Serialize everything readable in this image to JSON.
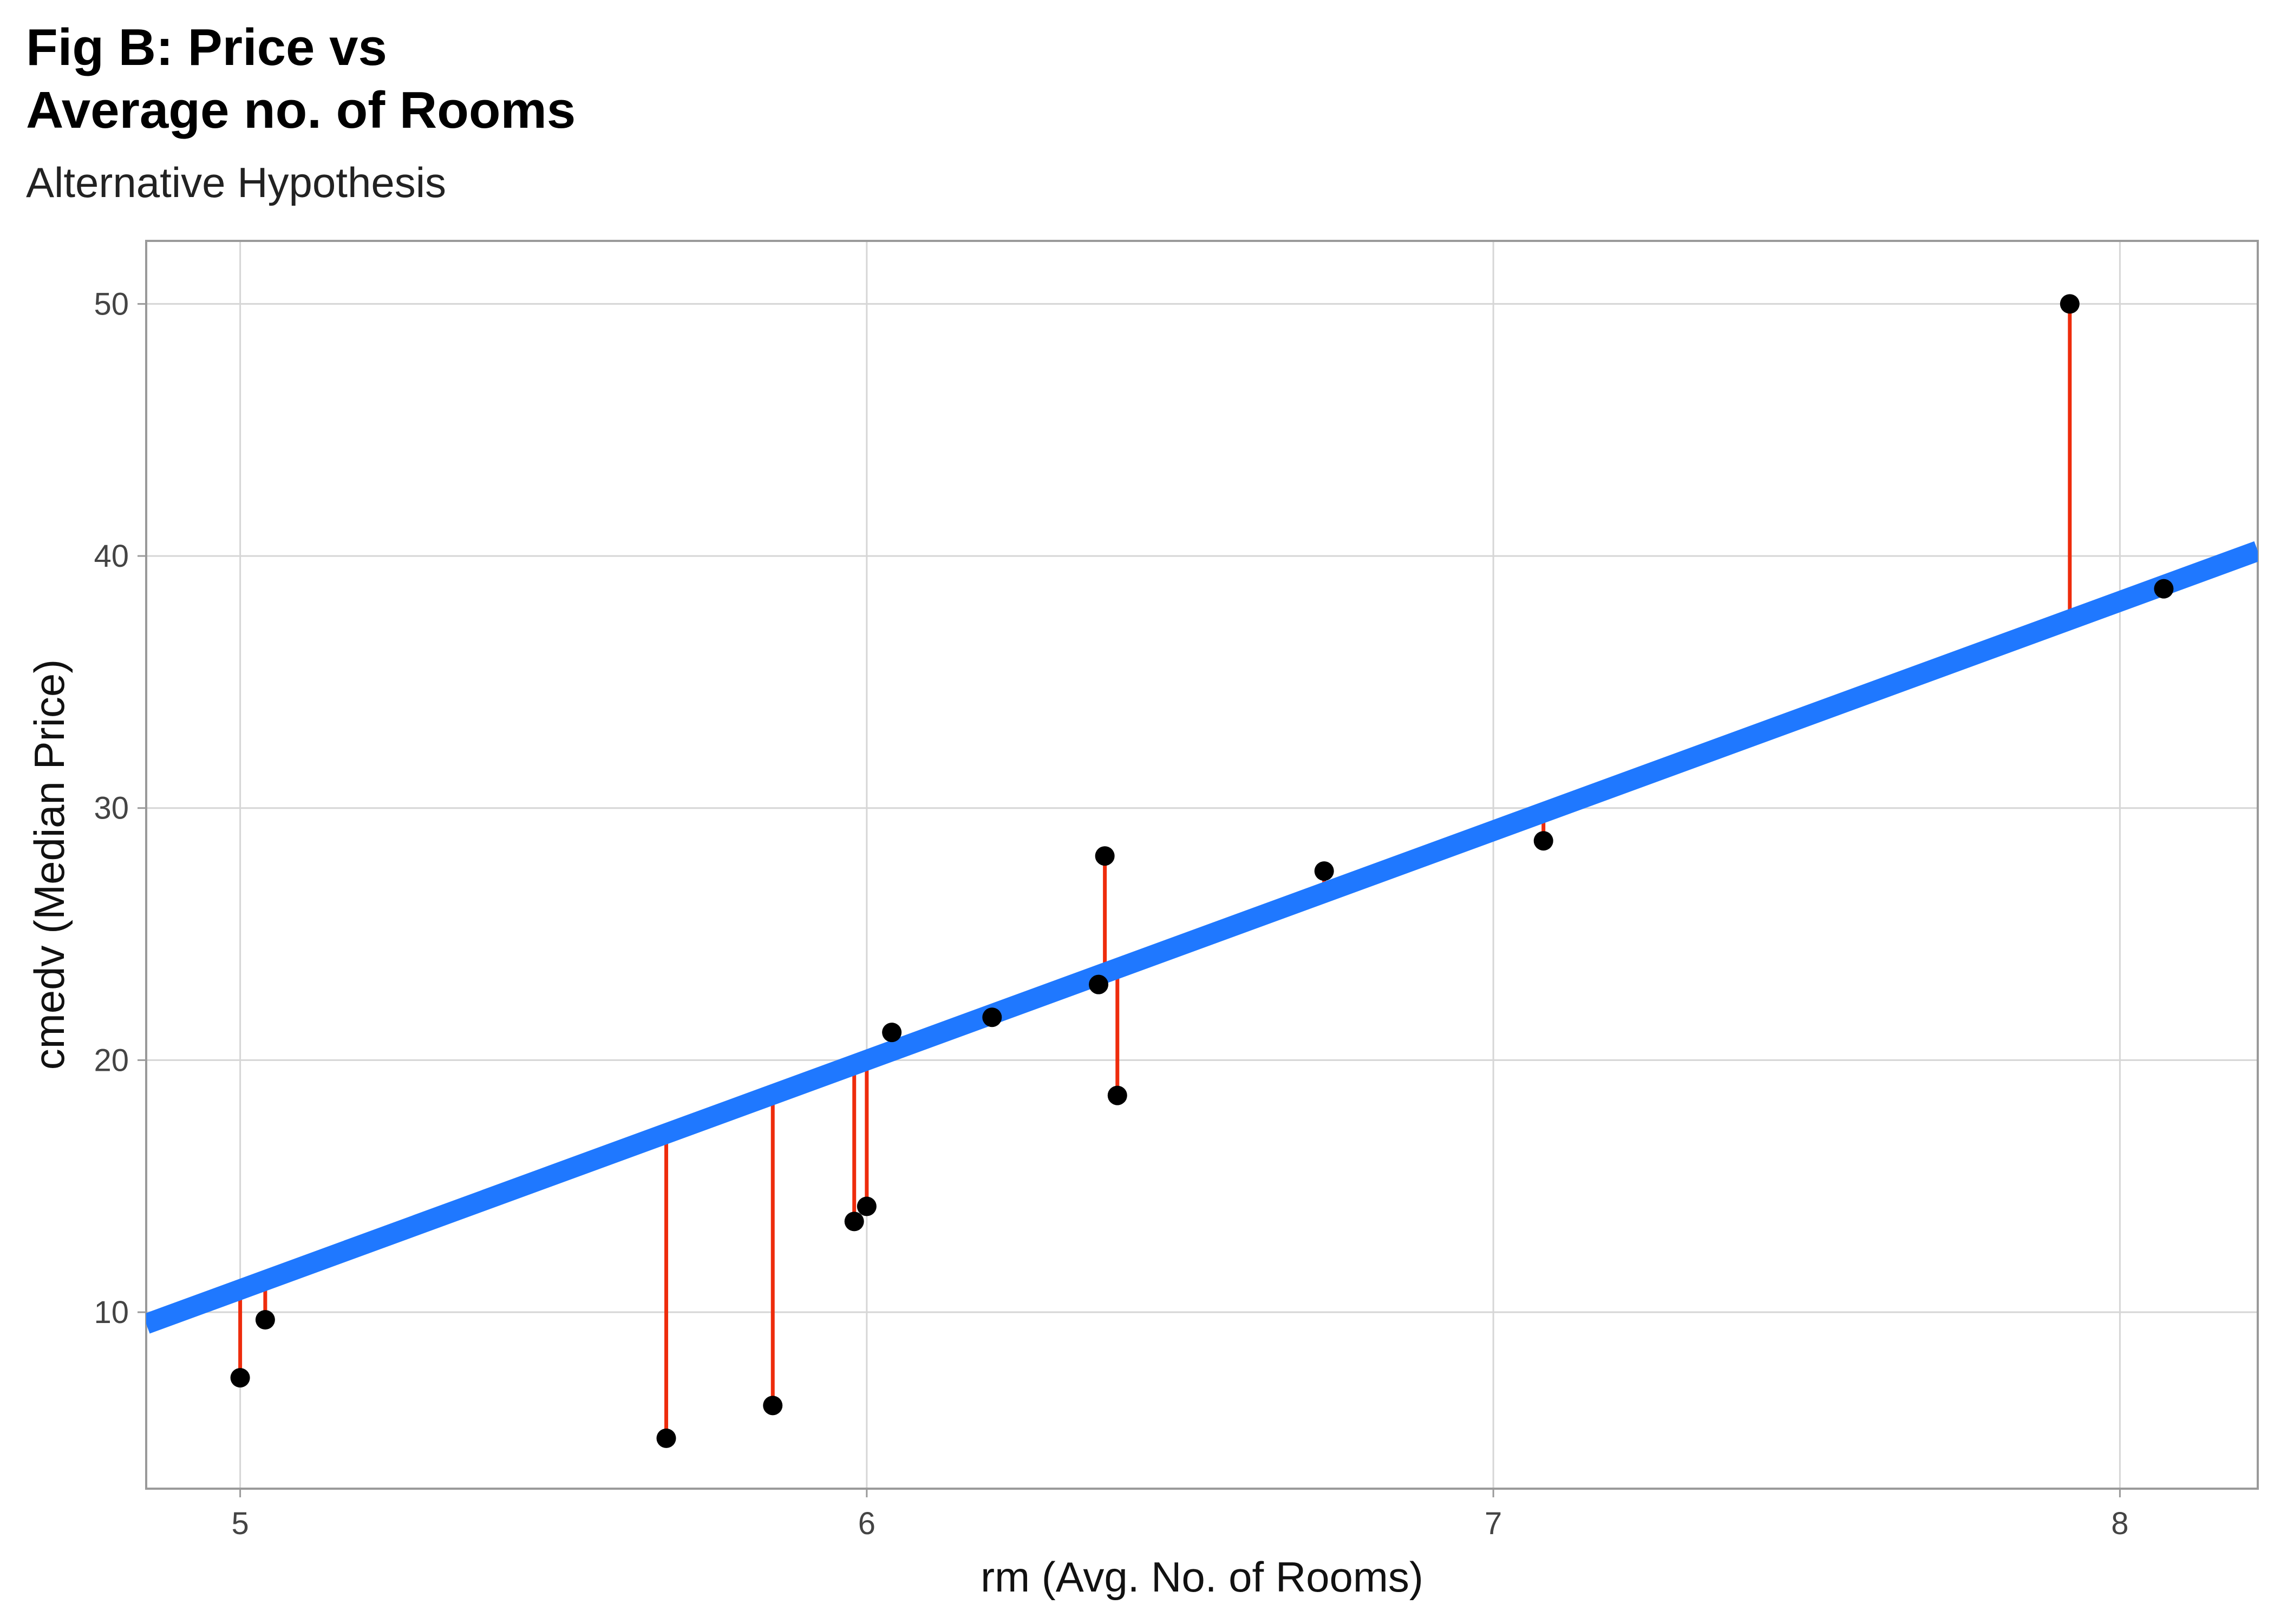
{
  "chart_data": {
    "type": "scatter",
    "title": "Fig B: Price vs\nAverage no. of Rooms",
    "subtitle": "Alternative Hypothesis",
    "xlabel": "rm (Avg. No. of Rooms)",
    "ylabel": "cmedv (Median Price)",
    "xlim": [
      4.85,
      8.22
    ],
    "ylim": [
      3.0,
      52.5
    ],
    "xticks": [
      5,
      6,
      7,
      8
    ],
    "yticks": [
      10,
      20,
      30,
      40,
      50
    ],
    "grid": true,
    "legend": "none",
    "points": [
      {
        "x": 5.0,
        "y": 7.4
      },
      {
        "x": 5.04,
        "y": 9.7
      },
      {
        "x": 5.68,
        "y": 5.0
      },
      {
        "x": 5.85,
        "y": 6.3
      },
      {
        "x": 5.98,
        "y": 13.6
      },
      {
        "x": 6.0,
        "y": 14.2
      },
      {
        "x": 6.04,
        "y": 21.1
      },
      {
        "x": 6.2,
        "y": 21.7
      },
      {
        "x": 6.37,
        "y": 23.0
      },
      {
        "x": 6.38,
        "y": 28.1
      },
      {
        "x": 6.4,
        "y": 18.6
      },
      {
        "x": 6.73,
        "y": 27.5
      },
      {
        "x": 7.08,
        "y": 28.7
      },
      {
        "x": 7.92,
        "y": 50.0
      },
      {
        "x": 8.07,
        "y": 38.7
      }
    ],
    "fit_line": {
      "slope": 9.1,
      "intercept": -34.6
    },
    "colors": {
      "points": "#000000",
      "fit_line": "#1f78ff",
      "residuals": "#ee2c0c",
      "grid": "#d6d6d6",
      "panel_border": "#9a9a9a"
    }
  }
}
